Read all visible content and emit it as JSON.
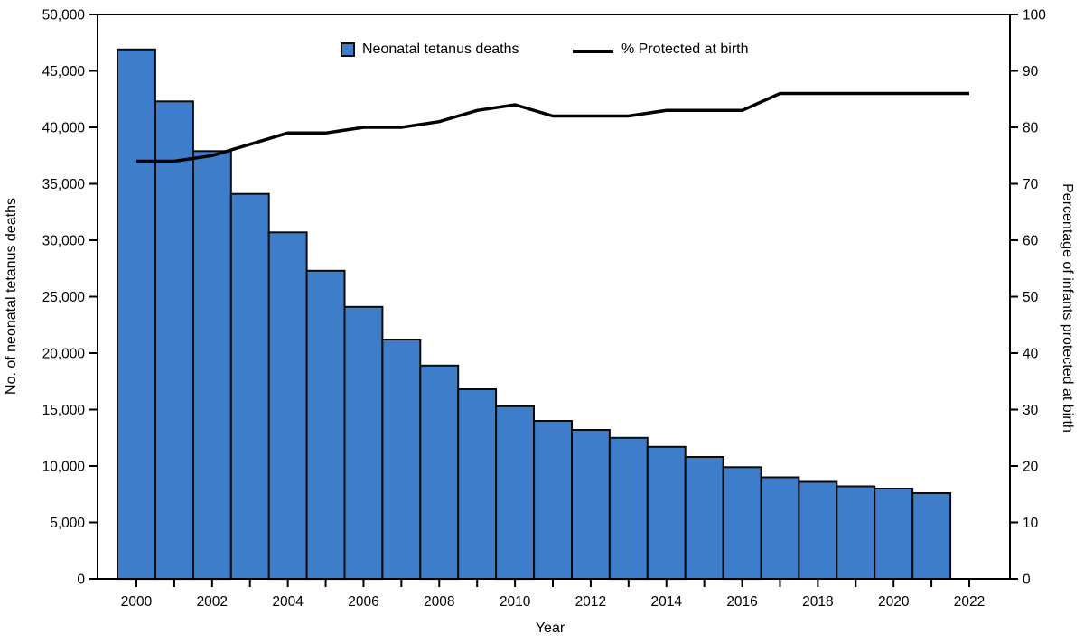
{
  "chart_data": {
    "type": "bar+line combo",
    "title": "",
    "grid": "off",
    "legend_position": "top-inside",
    "categories": [
      2000,
      2001,
      2002,
      2003,
      2004,
      2005,
      2006,
      2007,
      2008,
      2009,
      2010,
      2011,
      2012,
      2013,
      2014,
      2015,
      2016,
      2017,
      2018,
      2019,
      2020,
      2021
    ],
    "series": [
      {
        "name": "Neonatal tetanus deaths",
        "type": "bar",
        "y_axis": "left",
        "color": "#3D7DCA",
        "border_color": "#0a0a0a",
        "values": [
          46900,
          42300,
          37900,
          34100,
          30700,
          27300,
          24100,
          21200,
          18900,
          16800,
          15300,
          14000,
          13200,
          12500,
          11700,
          10800,
          9900,
          9000,
          8600,
          8200,
          8000,
          7600
        ]
      },
      {
        "name": "% Protected at birth",
        "type": "line",
        "y_axis": "right",
        "color": "#000000",
        "x": [
          2000,
          2001,
          2002,
          2003,
          2004,
          2005,
          2006,
          2007,
          2008,
          2009,
          2010,
          2011,
          2012,
          2013,
          2014,
          2015,
          2016,
          2017,
          2018,
          2019,
          2020,
          2021,
          2022
        ],
        "values": [
          74,
          74,
          75,
          77,
          79,
          79,
          80,
          80,
          81,
          83,
          84,
          82,
          82,
          82,
          83,
          83,
          83,
          86,
          86,
          86,
          86,
          86,
          86
        ]
      }
    ],
    "left_axis": {
      "label": "No. of neonatal tetanus deaths",
      "min": 0,
      "max": 50000,
      "tick_step": 5000,
      "tick_labels": [
        "0",
        "5,000",
        "10,000",
        "15,000",
        "20,000",
        "25,000",
        "30,000",
        "35,000",
        "40,000",
        "45,000",
        "50,000"
      ]
    },
    "right_axis": {
      "label": "Percentage of infants protected at birth",
      "min": 0,
      "max": 100,
      "tick_step": 10,
      "tick_labels": [
        "0",
        "10",
        "20",
        "30",
        "40",
        "50",
        "60",
        "70",
        "80",
        "90",
        "100"
      ]
    },
    "x_axis": {
      "label": "Year",
      "min": 2000,
      "max": 2022,
      "tick_every": 1,
      "label_every": 2,
      "tick_labels": [
        "2000",
        "2002",
        "2004",
        "2006",
        "2008",
        "2010",
        "2012",
        "2014",
        "2016",
        "2018",
        "2020",
        "2022"
      ]
    }
  }
}
